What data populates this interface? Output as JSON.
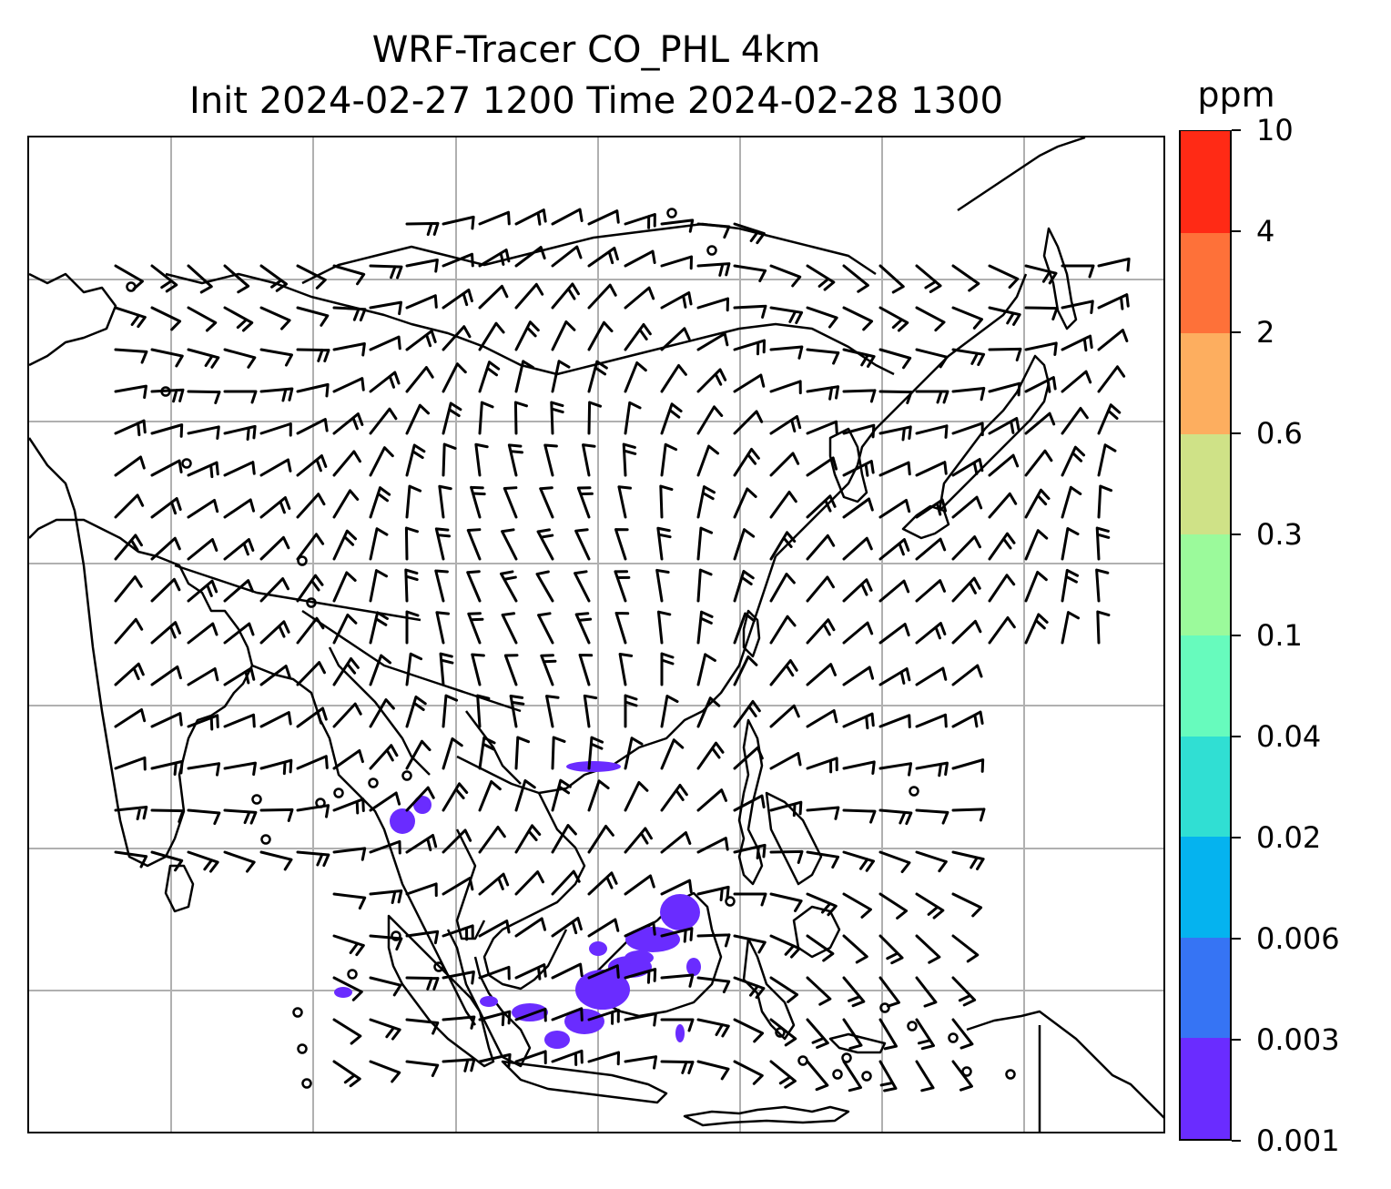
{
  "title": {
    "line1": "WRF-Tracer CO_PHL 4km",
    "line2": "Init 2024-02-27 1200 Time 2024-02-28 1300"
  },
  "colorbar": {
    "units": "ppm",
    "levels": [
      "0.001",
      "0.003",
      "0.006",
      "0.02",
      "0.04",
      "0.1",
      "0.3",
      "0.6",
      "2",
      "4",
      "10"
    ],
    "colors": [
      "#6a2cff",
      "#3674f4",
      "#05b3ef",
      "#30dfd3",
      "#67fbbd",
      "#9bfa9b",
      "#cfe287",
      "#fdae5f",
      "#fe7139",
      "#ff2a15"
    ]
  },
  "map": {
    "coastline_color": "#000000",
    "gridline_color": "#b0b0b0",
    "tracer_color": "#6a2cff",
    "wind_barb_color": "#000000"
  }
}
